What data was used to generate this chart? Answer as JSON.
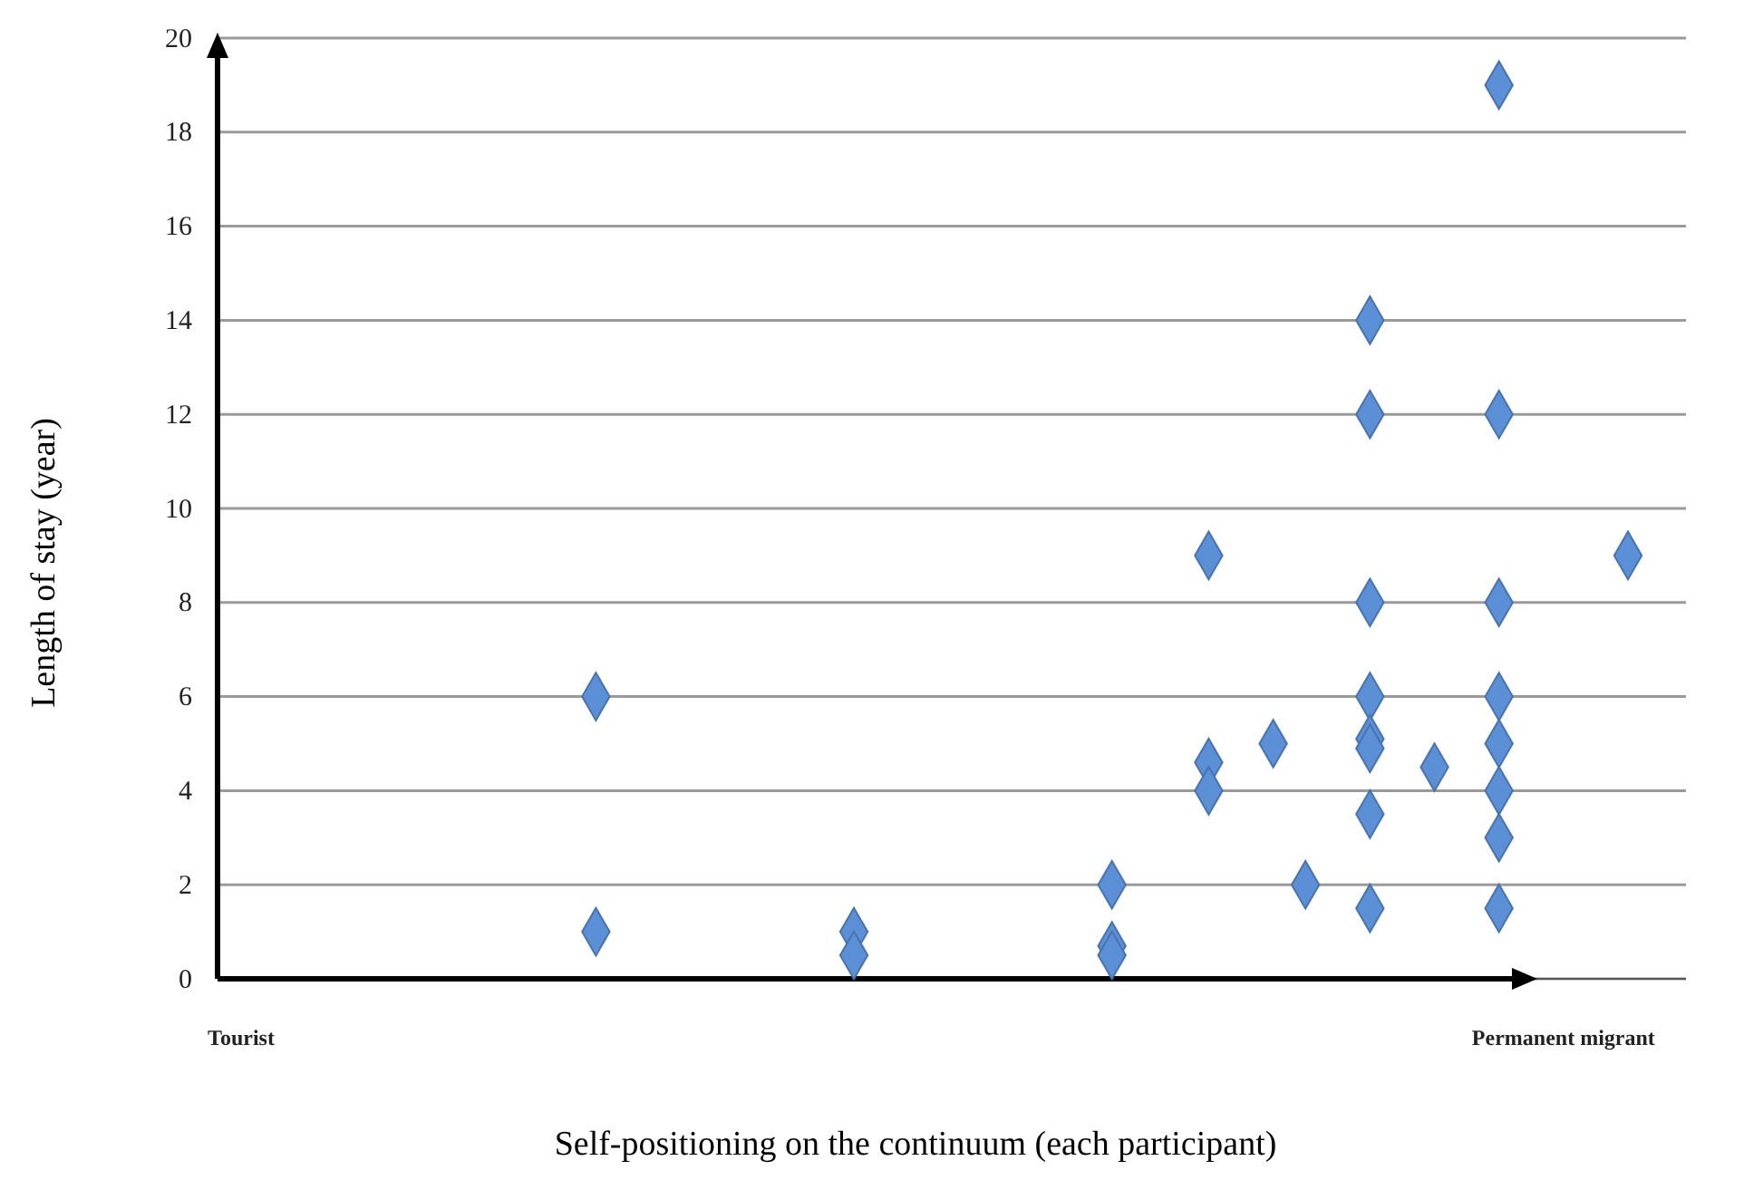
{
  "chart_data": {
    "type": "scatter",
    "xlabel": "Self-positioning on the continuum (each participant)",
    "ylabel": "Length of stay (year)",
    "categories": [
      "Tourist",
      null,
      null,
      null,
      null,
      null,
      null,
      null,
      null,
      null,
      null,
      null,
      null,
      null,
      null,
      null,
      null,
      null,
      null,
      null,
      null,
      null,
      null,
      null,
      null,
      null,
      null,
      null,
      null,
      null,
      null,
      null,
      null,
      null,
      null,
      null,
      null,
      null,
      null,
      null,
      null,
      "Permanent migrant",
      null,
      null
    ],
    "ylim": [
      0,
      20
    ],
    "yticks": [
      0,
      2,
      4,
      6,
      8,
      10,
      12,
      14,
      16,
      18,
      20
    ],
    "grid": "y",
    "marker": "diamond",
    "series": [
      {
        "color": "#5b8fd6",
        "values": [
          null,
          null,
          null,
          null,
          null,
          null,
          null,
          null,
          null,
          null,
          null,
          6,
          null,
          null,
          null,
          null,
          null,
          null,
          null,
          1,
          null,
          null,
          null,
          null,
          null,
          null,
          null,
          2,
          null,
          null,
          9,
          null,
          5,
          2,
          null,
          14,
          null,
          4.5,
          null,
          19,
          null,
          null,
          null,
          9
        ]
      },
      {
        "color": "#5b8fd6",
        "values": [
          null,
          null,
          null,
          null,
          null,
          null,
          null,
          null,
          null,
          null,
          null,
          1,
          null,
          null,
          null,
          null,
          null,
          null,
          null,
          0.5,
          null,
          null,
          null,
          null,
          null,
          null,
          null,
          0.7,
          null,
          null,
          4.6,
          null,
          null,
          null,
          null,
          12,
          null,
          null,
          null,
          12,
          null,
          null,
          null,
          null
        ]
      },
      {
        "color": "#5b8fd6",
        "values": [
          null,
          null,
          null,
          null,
          null,
          null,
          null,
          null,
          null,
          null,
          null,
          null,
          null,
          null,
          null,
          null,
          null,
          null,
          null,
          null,
          null,
          null,
          null,
          null,
          null,
          null,
          null,
          0.5,
          null,
          null,
          4,
          null,
          null,
          null,
          null,
          8,
          null,
          null,
          null,
          8,
          null,
          null,
          null,
          null
        ]
      },
      {
        "color": "#5b8fd6",
        "values": [
          null,
          null,
          null,
          null,
          null,
          null,
          null,
          null,
          null,
          null,
          null,
          null,
          null,
          null,
          null,
          null,
          null,
          null,
          null,
          null,
          null,
          null,
          null,
          null,
          null,
          null,
          null,
          null,
          null,
          null,
          null,
          null,
          null,
          null,
          null,
          6,
          null,
          null,
          null,
          6,
          null,
          null,
          null,
          null
        ]
      },
      {
        "color": "#5b8fd6",
        "values": [
          null,
          null,
          null,
          null,
          null,
          null,
          null,
          null,
          null,
          null,
          null,
          null,
          null,
          null,
          null,
          null,
          null,
          null,
          null,
          null,
          null,
          null,
          null,
          null,
          null,
          null,
          null,
          null,
          null,
          null,
          null,
          null,
          null,
          null,
          null,
          5.1,
          null,
          null,
          null,
          5,
          null,
          null,
          null,
          null
        ]
      },
      {
        "color": "#5b8fd6",
        "values": [
          null,
          null,
          null,
          null,
          null,
          null,
          null,
          null,
          null,
          null,
          null,
          null,
          null,
          null,
          null,
          null,
          null,
          null,
          null,
          null,
          null,
          null,
          null,
          null,
          null,
          null,
          null,
          null,
          null,
          null,
          null,
          null,
          null,
          null,
          null,
          4.9,
          null,
          null,
          null,
          4,
          null,
          null,
          null,
          null
        ]
      },
      {
        "color": "#5b8fd6",
        "values": [
          null,
          null,
          null,
          null,
          null,
          null,
          null,
          null,
          null,
          null,
          null,
          null,
          null,
          null,
          null,
          null,
          null,
          null,
          null,
          null,
          null,
          null,
          null,
          null,
          null,
          null,
          null,
          null,
          null,
          null,
          null,
          null,
          null,
          null,
          null,
          3.5,
          null,
          null,
          null,
          3,
          null,
          null,
          null,
          null
        ]
      },
      {
        "color": "#5b8fd6",
        "values": [
          null,
          null,
          null,
          null,
          null,
          null,
          null,
          null,
          null,
          null,
          null,
          null,
          null,
          null,
          null,
          null,
          null,
          null,
          null,
          null,
          null,
          null,
          null,
          null,
          null,
          null,
          null,
          null,
          null,
          null,
          null,
          null,
          null,
          null,
          null,
          1.5,
          null,
          null,
          null,
          1.5,
          null,
          null,
          null,
          null
        ]
      }
    ]
  }
}
